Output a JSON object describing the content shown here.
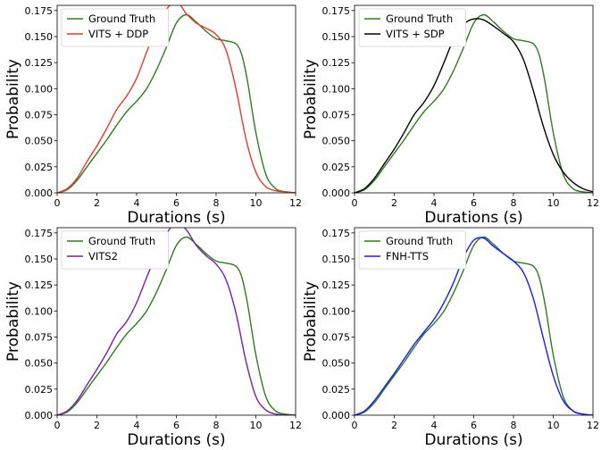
{
  "chart_data": [
    {
      "type": "line",
      "xlabel": "Durations (s)",
      "ylabel": "Probability",
      "xlim": [
        0,
        12
      ],
      "ylim": [
        0,
        0.18
      ],
      "xticks": [
        0,
        2,
        4,
        6,
        8,
        10,
        12
      ],
      "yticks": [
        0.0,
        0.025,
        0.05,
        0.075,
        0.1,
        0.125,
        0.15,
        0.175
      ],
      "ytick_labels": [
        "0.000",
        "0.025",
        "0.050",
        "0.075",
        "0.100",
        "0.125",
        "0.150",
        "0.175"
      ],
      "legend_position": "top-left",
      "series": [
        {
          "name": "Ground Truth",
          "color": "#2e7d1f",
          "x": [
            0,
            0.5,
            1,
            1.5,
            2,
            2.5,
            3,
            3.5,
            4,
            4.5,
            5,
            5.5,
            6,
            6.5,
            7,
            7.5,
            8,
            8.5,
            9,
            9.3,
            9.6,
            10,
            10.5,
            11,
            11.5,
            12
          ],
          "y": [
            0,
            0.003,
            0.012,
            0.025,
            0.038,
            0.051,
            0.065,
            0.078,
            0.088,
            0.1,
            0.118,
            0.14,
            0.163,
            0.171,
            0.164,
            0.155,
            0.148,
            0.146,
            0.143,
            0.132,
            0.105,
            0.058,
            0.018,
            0.004,
            0.001,
            0
          ]
        },
        {
          "name": "VITS + DDP",
          "color": "#e8392b",
          "x": [
            0,
            0.5,
            1,
            1.5,
            2,
            2.5,
            3,
            3.5,
            4,
            4.5,
            5,
            5.5,
            6,
            6.5,
            7,
            7.5,
            8,
            8.5,
            9,
            9.5,
            10,
            10.5,
            11,
            11.5,
            12
          ],
          "y": [
            0,
            0.004,
            0.014,
            0.03,
            0.045,
            0.062,
            0.08,
            0.093,
            0.11,
            0.135,
            0.158,
            0.176,
            0.184,
            0.172,
            0.163,
            0.158,
            0.152,
            0.137,
            0.1,
            0.052,
            0.02,
            0.006,
            0.002,
            0.001,
            0
          ]
        }
      ]
    },
    {
      "type": "line",
      "xlabel": "Durations (s)",
      "ylabel": "Probability",
      "xlim": [
        0,
        12
      ],
      "ylim": [
        0,
        0.18
      ],
      "xticks": [
        0,
        2,
        4,
        6,
        8,
        10,
        12
      ],
      "yticks": [
        0.0,
        0.025,
        0.05,
        0.075,
        0.1,
        0.125,
        0.15,
        0.175
      ],
      "ytick_labels": [
        "0.000",
        "0.025",
        "0.050",
        "0.075",
        "0.100",
        "0.125",
        "0.150",
        "0.175"
      ],
      "legend_position": "top-left",
      "series": [
        {
          "name": "Ground Truth",
          "color": "#2e7d1f",
          "x": [
            0,
            0.5,
            1,
            1.5,
            2,
            2.5,
            3,
            3.5,
            4,
            4.5,
            5,
            5.5,
            6,
            6.5,
            7,
            7.5,
            8,
            8.5,
            9,
            9.3,
            9.6,
            10,
            10.5,
            11,
            11.5,
            12
          ],
          "y": [
            0,
            0.003,
            0.012,
            0.025,
            0.038,
            0.051,
            0.065,
            0.078,
            0.088,
            0.1,
            0.118,
            0.14,
            0.163,
            0.171,
            0.164,
            0.155,
            0.148,
            0.146,
            0.143,
            0.132,
            0.105,
            0.058,
            0.018,
            0.004,
            0.001,
            0
          ]
        },
        {
          "name": "VITS + SDP",
          "color": "#000000",
          "x": [
            0,
            0.5,
            1,
            1.5,
            2,
            2.5,
            3,
            3.5,
            4,
            4.5,
            5,
            5.5,
            6,
            6.5,
            7,
            7.5,
            8,
            8.5,
            9,
            9.5,
            10,
            10.5,
            11,
            11.5,
            12
          ],
          "y": [
            0,
            0.004,
            0.014,
            0.028,
            0.042,
            0.058,
            0.075,
            0.087,
            0.103,
            0.125,
            0.148,
            0.162,
            0.167,
            0.166,
            0.16,
            0.153,
            0.145,
            0.128,
            0.098,
            0.064,
            0.037,
            0.02,
            0.01,
            0.004,
            0.001
          ]
        }
      ]
    },
    {
      "type": "line",
      "xlabel": "Durations (s)",
      "ylabel": "Probability",
      "xlim": [
        0,
        12
      ],
      "ylim": [
        0,
        0.18
      ],
      "xticks": [
        0,
        2,
        4,
        6,
        8,
        10,
        12
      ],
      "yticks": [
        0.0,
        0.025,
        0.05,
        0.075,
        0.1,
        0.125,
        0.15,
        0.175
      ],
      "ytick_labels": [
        "0.000",
        "0.025",
        "0.050",
        "0.075",
        "0.100",
        "0.125",
        "0.150",
        "0.175"
      ],
      "legend_position": "top-left",
      "series": [
        {
          "name": "Ground Truth",
          "color": "#2e7d1f",
          "x": [
            0,
            0.5,
            1,
            1.5,
            2,
            2.5,
            3,
            3.5,
            4,
            4.5,
            5,
            5.5,
            6,
            6.5,
            7,
            7.5,
            8,
            8.5,
            9,
            9.3,
            9.6,
            10,
            10.5,
            11,
            11.5,
            12
          ],
          "y": [
            0,
            0.003,
            0.012,
            0.025,
            0.038,
            0.051,
            0.065,
            0.078,
            0.088,
            0.1,
            0.118,
            0.14,
            0.163,
            0.171,
            0.164,
            0.155,
            0.148,
            0.146,
            0.143,
            0.132,
            0.105,
            0.058,
            0.018,
            0.004,
            0.001,
            0
          ]
        },
        {
          "name": "VITS2",
          "color": "#7b1fa2",
          "x": [
            0,
            0.5,
            1,
            1.5,
            2,
            2.5,
            3,
            3.5,
            4,
            4.5,
            5,
            5.5,
            6,
            6.5,
            7,
            7.5,
            8,
            8.5,
            9,
            9.5,
            10,
            10.5,
            11,
            11.5,
            12
          ],
          "y": [
            0,
            0.004,
            0.014,
            0.029,
            0.044,
            0.06,
            0.078,
            0.09,
            0.108,
            0.132,
            0.155,
            0.174,
            0.185,
            0.178,
            0.163,
            0.153,
            0.145,
            0.13,
            0.098,
            0.052,
            0.018,
            0.005,
            0.001,
            0,
            0
          ]
        }
      ]
    },
    {
      "type": "line",
      "xlabel": "Durations (s)",
      "ylabel": "Probability",
      "xlim": [
        0,
        12
      ],
      "ylim": [
        0,
        0.18
      ],
      "xticks": [
        0,
        2,
        4,
        6,
        8,
        10,
        12
      ],
      "yticks": [
        0.0,
        0.025,
        0.05,
        0.075,
        0.1,
        0.125,
        0.15,
        0.175
      ],
      "ytick_labels": [
        "0.000",
        "0.025",
        "0.050",
        "0.075",
        "0.100",
        "0.125",
        "0.150",
        "0.175"
      ],
      "legend_position": "top-left",
      "series": [
        {
          "name": "Ground Truth",
          "color": "#2e7d1f",
          "x": [
            0,
            0.5,
            1,
            1.5,
            2,
            2.5,
            3,
            3.5,
            4,
            4.5,
            5,
            5.5,
            6,
            6.5,
            7,
            7.5,
            8,
            8.5,
            9,
            9.3,
            9.6,
            10,
            10.5,
            11,
            11.5,
            12
          ],
          "y": [
            0,
            0.003,
            0.012,
            0.025,
            0.038,
            0.051,
            0.065,
            0.078,
            0.088,
            0.1,
            0.118,
            0.14,
            0.163,
            0.171,
            0.164,
            0.155,
            0.148,
            0.146,
            0.143,
            0.132,
            0.105,
            0.058,
            0.018,
            0.004,
            0.001,
            0
          ]
        },
        {
          "name": "FNH-TTS",
          "color": "#1a1aff",
          "x": [
            0,
            0.5,
            1,
            1.5,
            2,
            2.5,
            3,
            3.5,
            4,
            4.5,
            5,
            5.5,
            6,
            6.5,
            7,
            7.5,
            8,
            8.5,
            9,
            9.5,
            10,
            10.5,
            11,
            11.5,
            12
          ],
          "y": [
            0,
            0.004,
            0.014,
            0.027,
            0.04,
            0.054,
            0.068,
            0.08,
            0.092,
            0.108,
            0.128,
            0.152,
            0.168,
            0.17,
            0.162,
            0.155,
            0.148,
            0.137,
            0.112,
            0.074,
            0.038,
            0.014,
            0.004,
            0.001,
            0
          ]
        }
      ]
    }
  ]
}
